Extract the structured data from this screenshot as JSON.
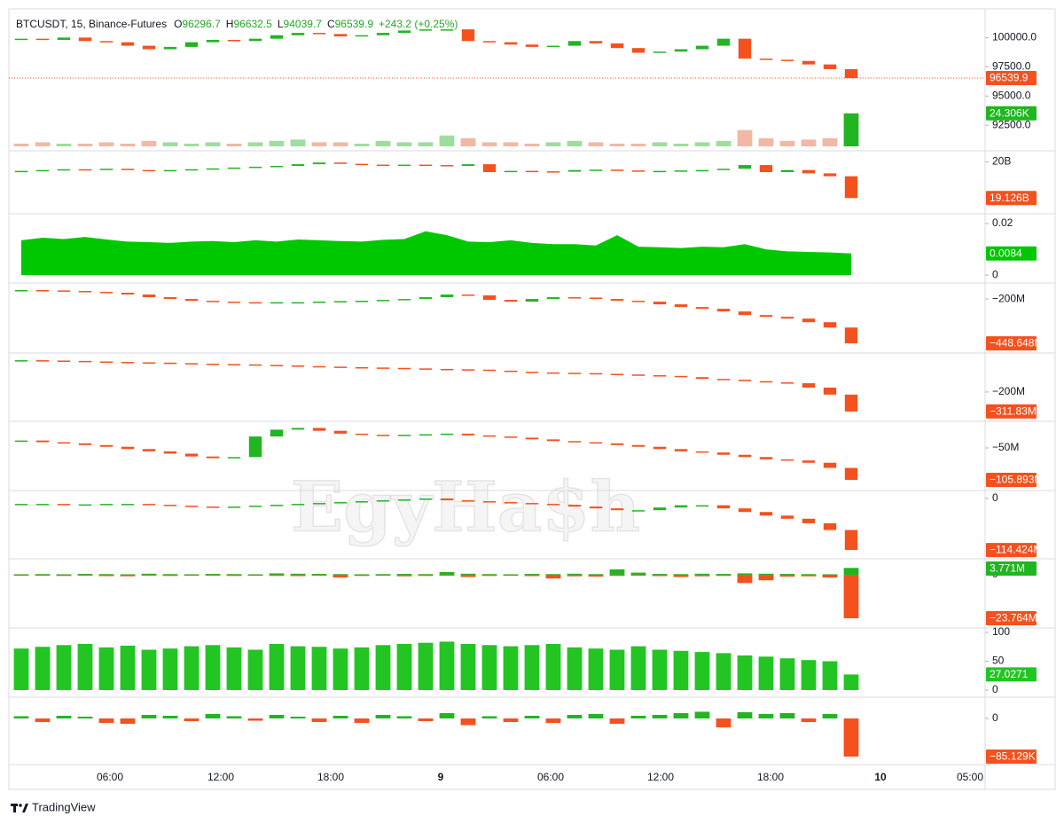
{
  "chart_data": [
    {
      "type": "step",
      "title": "BTCUSDT, 15, Binance-Futures",
      "ohlc": [
        {
          "label": "O",
          "value": 96296.7
        },
        {
          "label": "H",
          "value": 96632.5
        },
        {
          "label": "L",
          "value": 94039.7
        },
        {
          "label": "C",
          "value": 96539.9
        }
      ],
      "change": "+243.2 (+0.25%)",
      "ylim": [
        90700,
        102300
      ],
      "yticks": [
        {
          "value": 100000,
          "label": "100000.0"
        },
        {
          "value": 97500,
          "label": "97500.0"
        },
        {
          "value": 95000,
          "label": "95000.0"
        },
        {
          "value": 92500,
          "label": "92500.0"
        }
      ],
      "y2lim": [
        0,
        100
      ],
      "series": [
        {
          "up_color": "#22b522",
          "down_color": "#f4511e",
          "last_value_label": "96539.9",
          "values": [
            99900,
            99800,
            100000,
            99700,
            99600,
            99300,
            99000,
            99200,
            99600,
            99800,
            99700,
            99900,
            100200,
            100400,
            100300,
            100100,
            100200,
            100400,
            100600,
            100700,
            100700,
            99700,
            99600,
            99400,
            99200,
            99300,
            99700,
            99500,
            99100,
            98700,
            98800,
            99000,
            99300,
            99900,
            98200,
            98100,
            98000,
            97700,
            97300,
            96539.9
          ]
        },
        {
          "type": "bar",
          "axis": "y2",
          "color": "#f2b8a6",
          "up_color": "#9fdc9f",
          "last_value_label": "24.306K",
          "values": [
            2,
            3,
            2,
            2,
            3,
            2,
            4,
            3,
            2,
            3,
            2,
            3,
            4,
            5,
            3,
            3,
            2,
            4,
            3,
            3,
            8,
            6,
            3,
            3,
            2,
            3,
            4,
            3,
            2,
            2,
            3,
            2,
            3,
            4,
            12,
            6,
            4,
            5,
            6,
            24.306
          ]
        }
      ]
    },
    {
      "type": "step",
      "ylim": [
        18.77,
        20.22
      ],
      "yticks": [
        {
          "value": 20,
          "label": "20B"
        }
      ],
      "series": [
        {
          "up_color": "#22b522",
          "down_color": "#f4511e",
          "last_value_label": "19.126B",
          "values": [
            19.78,
            19.8,
            19.82,
            19.81,
            19.83,
            19.8,
            19.79,
            19.8,
            19.82,
            19.84,
            19.86,
            19.88,
            19.9,
            19.94,
            19.98,
            19.95,
            19.93,
            19.92,
            19.93,
            19.92,
            19.9,
            19.94,
            19.75,
            19.78,
            19.77,
            19.76,
            19.8,
            19.81,
            19.79,
            19.77,
            19.78,
            19.79,
            19.8,
            19.83,
            19.92,
            19.75,
            19.8,
            19.72,
            19.65,
            19.126
          ]
        }
      ]
    },
    {
      "type": "area",
      "ylim": [
        -0.0027,
        0.0231
      ],
      "yticks": [
        0.02,
        0
      ],
      "series": [
        {
          "color": "#00c800",
          "last_value_label": "0.0084",
          "values": [
            0.0135,
            0.0145,
            0.014,
            0.0148,
            0.0138,
            0.013,
            0.0128,
            0.0125,
            0.013,
            0.0132,
            0.0128,
            0.0135,
            0.013,
            0.0138,
            0.0135,
            0.0132,
            0.013,
            0.0137,
            0.014,
            0.017,
            0.0155,
            0.013,
            0.0128,
            0.0135,
            0.0125,
            0.012,
            0.012,
            0.0115,
            0.0155,
            0.011,
            0.0108,
            0.0105,
            0.011,
            0.0108,
            0.012,
            0.01,
            0.0092,
            0.009,
            0.0088,
            0.0084
          ]
        }
      ]
    },
    {
      "type": "step",
      "ylim": [
        -498,
        -120
      ],
      "yticks": [
        {
          "value": -200,
          "label": "−200M"
        }
      ],
      "series": [
        {
          "up_color": "#22b522",
          "down_color": "#f4511e",
          "last_value_label": "−448.648M",
          "values": [
            -150,
            -152,
            -155,
            -160,
            -165,
            -175,
            -190,
            -200,
            -210,
            -215,
            -218,
            -220,
            -218,
            -218,
            -215,
            -212,
            -210,
            -205,
            -200,
            -190,
            -175,
            -180,
            -205,
            -215,
            -200,
            -190,
            -192,
            -200,
            -210,
            -215,
            -230,
            -245,
            -255,
            -270,
            -290,
            -300,
            -310,
            -330,
            -360,
            -448.648
          ]
        }
      ]
    },
    {
      "type": "step",
      "ylim": [
        -363,
        13
      ],
      "yticks": [
        {
          "value": -200,
          "label": "−200M"
        }
      ],
      "series": [
        {
          "up_color": "#22b522",
          "down_color": "#f4511e",
          "last_value_label": "−311.83M",
          "values": [
            -18,
            -20,
            -22,
            -25,
            -28,
            -30,
            -32,
            -35,
            -38,
            -40,
            -42,
            -45,
            -48,
            -52,
            -55,
            -58,
            -60,
            -62,
            -65,
            -68,
            -70,
            -72,
            -78,
            -84,
            -88,
            -90,
            -92,
            -96,
            -100,
            -104,
            -108,
            -115,
            -125,
            -130,
            -138,
            -145,
            -150,
            -175,
            -215,
            -311.83
          ]
        }
      ]
    },
    {
      "type": "step",
      "ylim": [
        -123,
        -6.5
      ],
      "yticks": [
        {
          "value": -50,
          "label": "−50M"
        }
      ],
      "series": [
        {
          "up_color": "#22b522",
          "down_color": "#f4511e",
          "last_value_label": "−105.893M",
          "values": [
            -37,
            -40,
            -42,
            -45,
            -48,
            -52,
            -56,
            -60,
            -65,
            -68,
            -66,
            -30,
            -18,
            -15,
            -20,
            -25,
            -27,
            -28,
            -27,
            -26,
            -25,
            -28,
            -30,
            -32,
            -35,
            -38,
            -40,
            -42,
            -45,
            -48,
            -52,
            -56,
            -58,
            -62,
            -66,
            -70,
            -72,
            -76,
            -85,
            -105.893
          ]
        }
      ]
    },
    {
      "type": "step",
      "ylim": [
        -134,
        13.8
      ],
      "yticks": [
        0
      ],
      "series": [
        {
          "up_color": "#22b522",
          "down_color": "#f4511e",
          "last_value_label": "−114.424M",
          "values": [
            -12,
            -12,
            -13,
            -13,
            -12,
            -12,
            -14,
            -16,
            -18,
            -20,
            -18,
            -16,
            -14,
            -12,
            -10,
            -8,
            -6,
            -4,
            -2,
            0,
            -4,
            -6,
            -8,
            -10,
            -12,
            -14,
            -18,
            -22,
            -26,
            -26,
            -20,
            -15,
            -15,
            -22,
            -30,
            -38,
            -45,
            -55,
            -70,
            -114.424
          ]
        }
      ]
    },
    {
      "type": "bar",
      "ylim": [
        -28.6,
        7.8
      ],
      "yticks": [
        0
      ],
      "series": [
        {
          "color": "#22b522",
          "last_value_label": "3.771M",
          "values": [
            0.3,
            0.4,
            0.3,
            0.5,
            0.4,
            0.3,
            0.6,
            0.4,
            0.3,
            0.5,
            0.4,
            0.3,
            0.8,
            0.6,
            0.5,
            0.4,
            0.3,
            0.4,
            0.5,
            0.4,
            1.5,
            0.6,
            0.4,
            0.3,
            0.5,
            0.4,
            0.6,
            0.4,
            3,
            1.2,
            0.5,
            0.4,
            0.6,
            0.5,
            0.8,
            0.6,
            0.5,
            0.4,
            0.3,
            3.771
          ]
        },
        {
          "color": "#f4511e",
          "last_value_label": "−23.764M",
          "values": [
            -0.5,
            -0.4,
            -0.6,
            -0.5,
            -0.7,
            -0.8,
            -0.5,
            -0.6,
            -0.4,
            -0.5,
            -0.6,
            -0.5,
            -0.6,
            -0.7,
            -0.5,
            -1.5,
            -0.6,
            -0.5,
            -0.8,
            -0.6,
            -0.5,
            -1.2,
            -0.6,
            -0.5,
            -0.7,
            -2,
            -0.8,
            -1,
            -0.6,
            -0.5,
            -0.7,
            -1.2,
            -0.8,
            -0.6,
            -4.5,
            -3,
            -1,
            -0.8,
            -1.5,
            -23.764
          ]
        }
      ]
    },
    {
      "type": "bar",
      "ylim": [
        -10.8,
        104.6
      ],
      "yticks": [
        100,
        50,
        0
      ],
      "series": [
        {
          "color": "#22c522",
          "last_value_label": "27.0271",
          "values": [
            72,
            75,
            78,
            80,
            74,
            77,
            70,
            72,
            76,
            78,
            74,
            70,
            80,
            76,
            75,
            72,
            74,
            78,
            80,
            82,
            84,
            80,
            78,
            76,
            78,
            80,
            74,
            72,
            70,
            76,
            70,
            68,
            66,
            64,
            60,
            58,
            55,
            52,
            50,
            27.0271
          ]
        }
      ]
    },
    {
      "type": "bar",
      "ylim": [
        -103,
        43.6
      ],
      "yticks": [
        0
      ],
      "series": [
        {
          "up_color": "#22b522",
          "down_color": "#f4511e",
          "last_value_label": "−85.129K",
          "values": [
            5,
            -8,
            6,
            4,
            -10,
            -12,
            8,
            6,
            -6,
            10,
            5,
            -5,
            8,
            4,
            -8,
            6,
            -10,
            8,
            5,
            -6,
            12,
            -15,
            5,
            -8,
            6,
            -10,
            8,
            10,
            -12,
            6,
            8,
            12,
            15,
            -20,
            14,
            10,
            12,
            -8,
            10,
            -85.129
          ]
        }
      ]
    }
  ],
  "time_axis": [
    "06:00",
    "12:00",
    "18:00",
    "9",
    "06:00",
    "12:00",
    "18:00",
    "10",
    "05:00"
  ],
  "watermark": "EgyHa$h",
  "footer": "TradingView"
}
